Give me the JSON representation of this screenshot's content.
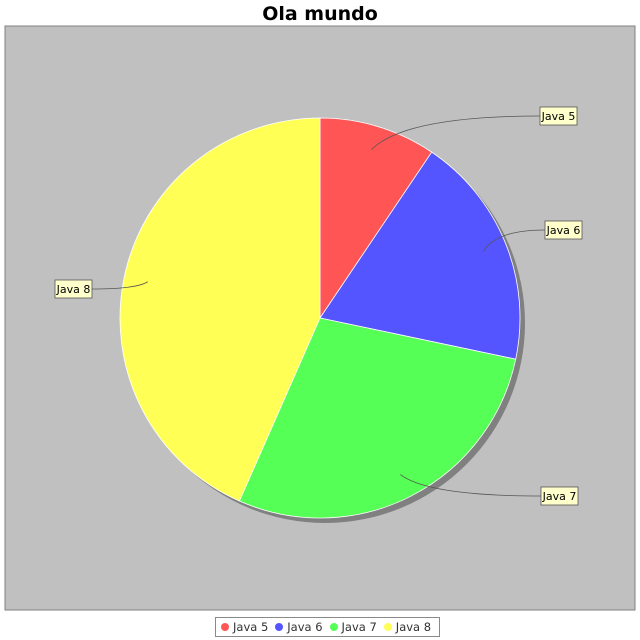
{
  "chart_data": {
    "type": "pie",
    "title": "Ola mundo",
    "categories": [
      "Java 5",
      "Java 6",
      "Java 7",
      "Java 8"
    ],
    "values": [
      10,
      20,
      30,
      46
    ],
    "colors": [
      "#ff5555",
      "#5555ff",
      "#55ff55",
      "#ffff55"
    ],
    "background_color": "#c0c0c0",
    "legend_position": "bottom",
    "grid": false
  }
}
